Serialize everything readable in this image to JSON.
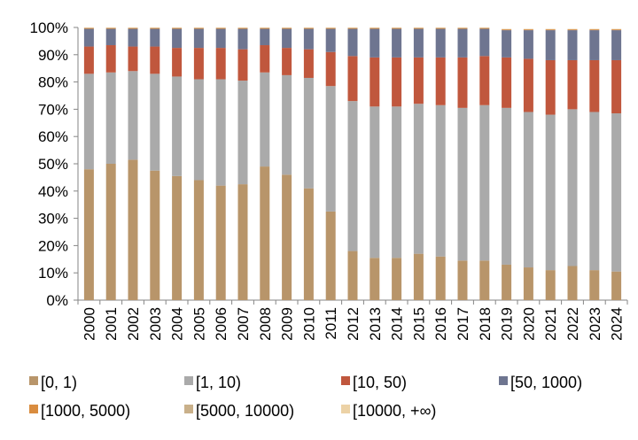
{
  "chart_data": {
    "type": "bar",
    "stacked": true,
    "percent": true,
    "categories": [
      "2000",
      "2001",
      "2002",
      "2003",
      "2004",
      "2005",
      "2006",
      "2007",
      "2008",
      "2009",
      "2010",
      "2011",
      "2012",
      "2013",
      "2014",
      "2015",
      "2016",
      "2017",
      "2018",
      "2019",
      "2020",
      "2021",
      "2022",
      "2023",
      "2024"
    ],
    "ylim": [
      0,
      100
    ],
    "yticks": [
      "0%",
      "10%",
      "20%",
      "30%",
      "40%",
      "50%",
      "60%",
      "70%",
      "80%",
      "90%",
      "100%"
    ],
    "grid": false,
    "legend_position": "bottom",
    "series": [
      {
        "name": "[0, 1)",
        "color": "#b8956a",
        "values": [
          48,
          50,
          51.5,
          47.5,
          45.5,
          44,
          42,
          42.5,
          49,
          46,
          41,
          32.5,
          18,
          15.5,
          15.5,
          17,
          16,
          14.5,
          14.5,
          13,
          12,
          11,
          12.5,
          11,
          10.5
        ]
      },
      {
        "name": "[1, 10)",
        "color": "#aaaaaa",
        "values": [
          35,
          33.5,
          32.5,
          35.5,
          36.5,
          37,
          39,
          38,
          34.5,
          36.5,
          40.5,
          46,
          55,
          55.5,
          55.5,
          55,
          55.5,
          56,
          57,
          57.5,
          57,
          57,
          57.5,
          58,
          58
        ]
      },
      {
        "name": "[10, 50)",
        "color": "#c0573d",
        "values": [
          10,
          10,
          9,
          10,
          10.5,
          11.5,
          11.5,
          11.5,
          10,
          10,
          10.5,
          12.5,
          16.5,
          18,
          18,
          17,
          17.5,
          18.5,
          18,
          18.5,
          19.5,
          20,
          18,
          19,
          19.5
        ]
      },
      {
        "name": "[50, 1000)",
        "color": "#6e7590",
        "values": [
          6.5,
          6,
          6.5,
          6.5,
          7,
          7,
          7,
          7.5,
          6,
          7,
          7.5,
          8.5,
          10,
          10.5,
          10.5,
          10.5,
          10.5,
          10.5,
          10,
          10,
          10.5,
          11,
          11,
          11,
          11
        ]
      },
      {
        "name": "[1000, 5000)",
        "color": "#d98c3f",
        "values": [
          0.3,
          0.3,
          0.3,
          0.3,
          0.3,
          0.3,
          0.3,
          0.3,
          0.3,
          0.3,
          0.3,
          0.3,
          0.3,
          0.3,
          0.3,
          0.3,
          0.3,
          0.3,
          0.3,
          0.3,
          0.3,
          0.3,
          0.3,
          0.3,
          0.3
        ]
      },
      {
        "name": "[5000, 10000)",
        "color": "#c9b08a",
        "values": [
          0.1,
          0.1,
          0.1,
          0.1,
          0.1,
          0.1,
          0.1,
          0.1,
          0.1,
          0.1,
          0.1,
          0.1,
          0.1,
          0.1,
          0.1,
          0.1,
          0.1,
          0.1,
          0.1,
          0.1,
          0.1,
          0.1,
          0.1,
          0.1,
          0.1
        ]
      },
      {
        "name": "[10000, +∞)",
        "color": "#ecd2a6",
        "values": [
          0.1,
          0.1,
          0.1,
          0.1,
          0.1,
          0.1,
          0.1,
          0.1,
          0.1,
          0.1,
          0.1,
          0.1,
          0.1,
          0.1,
          0.1,
          0.1,
          0.1,
          0.1,
          0.1,
          0.1,
          0.1,
          0.1,
          0.1,
          0.1,
          0.1
        ]
      }
    ]
  }
}
